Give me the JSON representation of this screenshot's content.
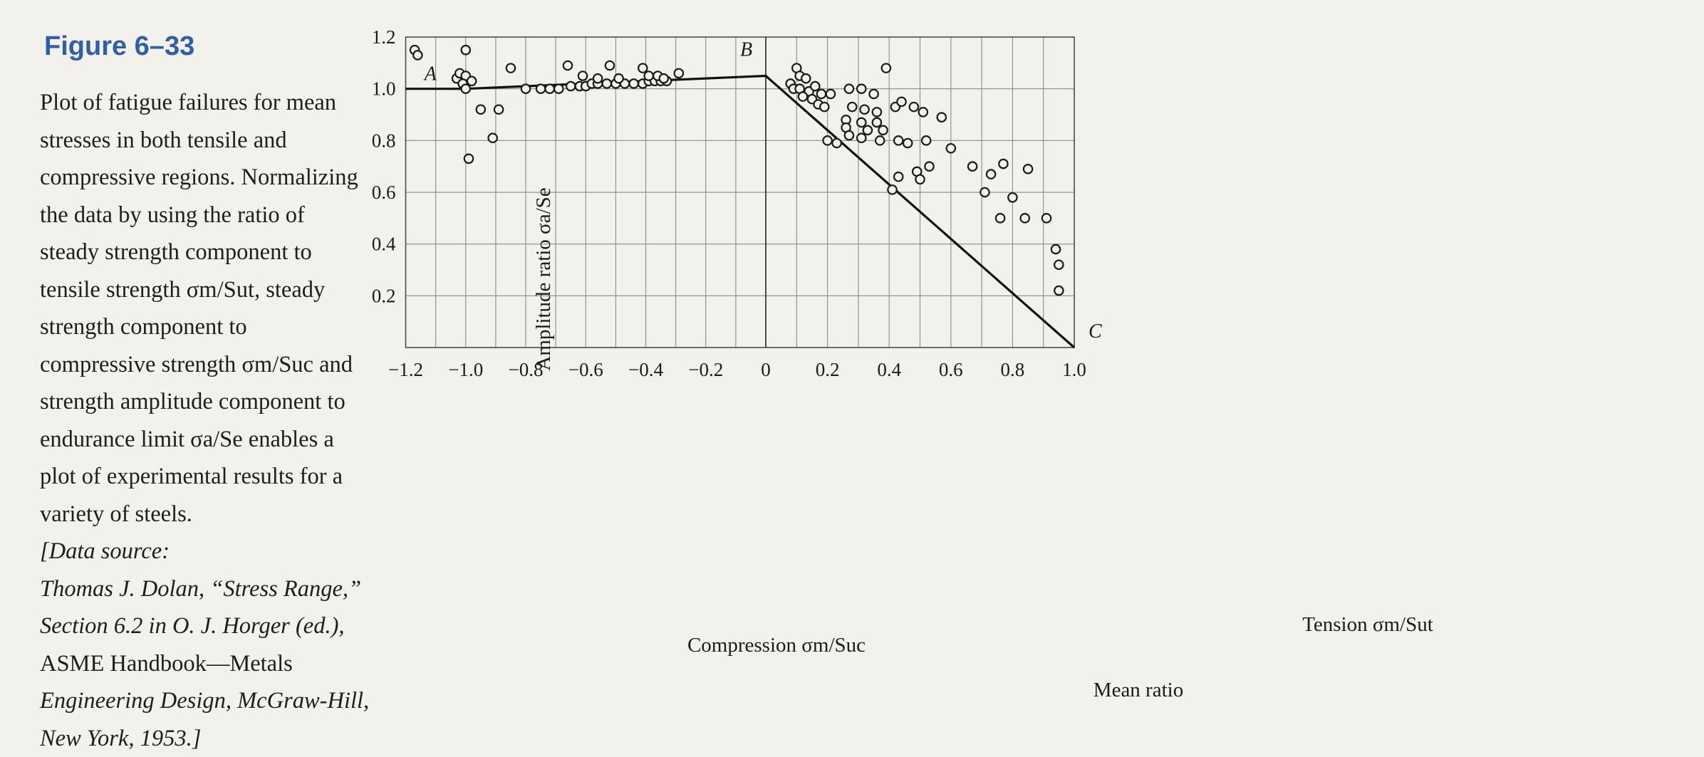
{
  "figure": {
    "title": "Figure 6–33",
    "caption_lines": [
      "Plot of fatigue failures for mean",
      "stresses in both tensile and",
      "compressive regions. Normalizing",
      "the data by using the ratio of",
      "steady strength component to",
      "tensile strength σm/Sut, steady",
      "strength component to",
      "compressive strength σm/Suc and",
      "strength amplitude component to",
      "endurance limit σa/Se enables a",
      "plot of experimental results for a",
      "variety of steels."
    ],
    "source_lines": [
      "[Data source:",
      "Thomas J. Dolan, “Stress Range,”",
      "Section 6.2 in O. J. Horger (ed.),"
    ],
    "plain_lines": [
      "ASME Handbook—Metals"
    ],
    "source_tail_lines": [
      "Engineering Design, McGraw-Hill,",
      "New York, 1953.]"
    ]
  },
  "chart_data": {
    "type": "scatter",
    "ylabel": "Amplitude ratio σa/Se",
    "xlabel_compression": "Compression σm/Suc",
    "xlabel_tension": "Tension σm/Sut",
    "xlabel_main": "Mean ratio",
    "xlim": [
      -1.2,
      1.0
    ],
    "ylim": [
      0,
      1.2
    ],
    "x_ticks": [
      {
        "value": -1.2,
        "label": "−1.2"
      },
      {
        "value": -1.0,
        "label": "−1.0"
      },
      {
        "value": -0.8,
        "label": "−0.8"
      },
      {
        "value": -0.6,
        "label": "−0.6"
      },
      {
        "value": -0.4,
        "label": "−0.4"
      },
      {
        "value": -0.2,
        "label": "−0.2"
      },
      {
        "value": 0,
        "label": "0"
      },
      {
        "value": 0.2,
        "label": "0.2"
      },
      {
        "value": 0.4,
        "label": "0.4"
      },
      {
        "value": 0.6,
        "label": "0.6"
      },
      {
        "value": 0.8,
        "label": "0.8"
      },
      {
        "value": 1.0,
        "label": "1.0"
      }
    ],
    "y_ticks": [
      {
        "value": 0.2,
        "label": "0.2"
      },
      {
        "value": 0.4,
        "label": "0.4"
      },
      {
        "value": 0.6,
        "label": "0.6"
      },
      {
        "value": 0.8,
        "label": "0.8"
      },
      {
        "value": 1.0,
        "label": "1.0"
      },
      {
        "value": 1.2,
        "label": "1.2"
      }
    ],
    "grid": true,
    "line_points": [
      {
        "label": "A",
        "x": -1.0,
        "y": 1.0
      },
      {
        "label": "B",
        "x": 0.0,
        "y": 1.05
      },
      {
        "label": "C",
        "x": 1.0,
        "y": 0.0
      }
    ],
    "points": [
      [
        -1.17,
        1.15
      ],
      [
        -1.16,
        1.13
      ],
      [
        -1.0,
        1.15
      ],
      [
        -1.03,
        1.04
      ],
      [
        -1.02,
        1.06
      ],
      [
        -1.0,
        1.05
      ],
      [
        -1.01,
        1.02
      ],
      [
        -0.98,
        1.03
      ],
      [
        -1.0,
        1.0
      ],
      [
        -0.95,
        0.92
      ],
      [
        -0.99,
        0.73
      ],
      [
        -0.89,
        0.92
      ],
      [
        -0.91,
        0.81
      ],
      [
        -0.85,
        1.08
      ],
      [
        -0.8,
        1.0
      ],
      [
        -0.75,
        1.0
      ],
      [
        -0.72,
        1.0
      ],
      [
        -0.69,
        1.0
      ],
      [
        -0.65,
        1.01
      ],
      [
        -0.62,
        1.01
      ],
      [
        -0.6,
        1.01
      ],
      [
        -0.58,
        1.02
      ],
      [
        -0.56,
        1.02
      ],
      [
        -0.53,
        1.02
      ],
      [
        -0.5,
        1.02
      ],
      [
        -0.47,
        1.02
      ],
      [
        -0.44,
        1.02
      ],
      [
        -0.41,
        1.02
      ],
      [
        -0.39,
        1.03
      ],
      [
        -0.37,
        1.03
      ],
      [
        -0.35,
        1.03
      ],
      [
        -0.33,
        1.03
      ],
      [
        -0.66,
        1.09
      ],
      [
        -0.61,
        1.05
      ],
      [
        -0.56,
        1.04
      ],
      [
        -0.52,
        1.09
      ],
      [
        -0.49,
        1.04
      ],
      [
        -0.41,
        1.08
      ],
      [
        -0.39,
        1.05
      ],
      [
        -0.36,
        1.05
      ],
      [
        -0.34,
        1.04
      ],
      [
        -0.29,
        1.06
      ],
      [
        0.1,
        1.08
      ],
      [
        0.11,
        1.05
      ],
      [
        0.13,
        1.04
      ],
      [
        0.08,
        1.02
      ],
      [
        0.09,
        1.0
      ],
      [
        0.11,
        1.0
      ],
      [
        0.14,
        0.99
      ],
      [
        0.12,
        0.97
      ],
      [
        0.15,
        0.96
      ],
      [
        0.17,
        0.94
      ],
      [
        0.19,
        0.93
      ],
      [
        0.16,
        1.01
      ],
      [
        0.18,
        0.98
      ],
      [
        0.21,
        0.98
      ],
      [
        0.27,
        1.0
      ],
      [
        0.31,
        1.0
      ],
      [
        0.35,
        0.98
      ],
      [
        0.39,
        1.08
      ],
      [
        0.28,
        0.93
      ],
      [
        0.32,
        0.92
      ],
      [
        0.36,
        0.91
      ],
      [
        0.26,
        0.88
      ],
      [
        0.31,
        0.87
      ],
      [
        0.36,
        0.87
      ],
      [
        0.26,
        0.85
      ],
      [
        0.33,
        0.84
      ],
      [
        0.38,
        0.84
      ],
      [
        0.2,
        0.8
      ],
      [
        0.23,
        0.79
      ],
      [
        0.27,
        0.82
      ],
      [
        0.31,
        0.81
      ],
      [
        0.37,
        0.8
      ],
      [
        0.43,
        0.8
      ],
      [
        0.46,
        0.79
      ],
      [
        0.42,
        0.93
      ],
      [
        0.44,
        0.95
      ],
      [
        0.48,
        0.93
      ],
      [
        0.51,
        0.91
      ],
      [
        0.57,
        0.89
      ],
      [
        0.52,
        0.8
      ],
      [
        0.6,
        0.77
      ],
      [
        0.49,
        0.68
      ],
      [
        0.53,
        0.7
      ],
      [
        0.5,
        0.65
      ],
      [
        0.43,
        0.66
      ],
      [
        0.41,
        0.61
      ],
      [
        0.67,
        0.7
      ],
      [
        0.77,
        0.71
      ],
      [
        0.73,
        0.67
      ],
      [
        0.85,
        0.69
      ],
      [
        0.8,
        0.58
      ],
      [
        0.71,
        0.6
      ],
      [
        0.76,
        0.5
      ],
      [
        0.84,
        0.5
      ],
      [
        0.91,
        0.5
      ],
      [
        0.94,
        0.38
      ],
      [
        0.95,
        0.32
      ],
      [
        0.95,
        0.22
      ]
    ]
  }
}
